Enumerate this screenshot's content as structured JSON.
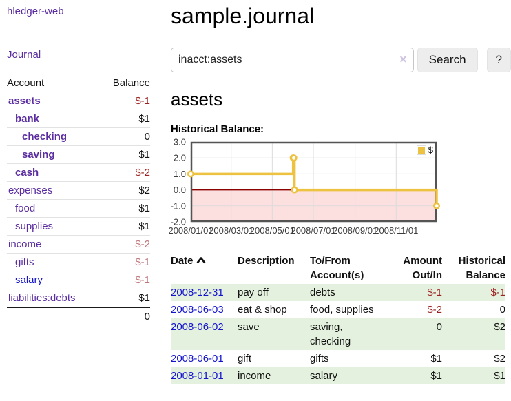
{
  "app": {
    "title": "hledger-web"
  },
  "nav": {
    "journal_label": "Journal"
  },
  "sidebar": {
    "header": {
      "account": "Account",
      "balance": "Balance"
    },
    "accounts": [
      {
        "name": "assets",
        "balance": "$-1",
        "depth": 1,
        "bold": true,
        "balance_color": "negative-strong"
      },
      {
        "name": "bank",
        "balance": "$1",
        "depth": 2,
        "bold": true,
        "balance_color": "normal"
      },
      {
        "name": "checking",
        "balance": "0",
        "depth": 3,
        "bold": true,
        "balance_color": "normal"
      },
      {
        "name": "saving",
        "balance": "$1",
        "depth": 3,
        "bold": true,
        "balance_color": "normal"
      },
      {
        "name": "cash",
        "balance": "$-2",
        "depth": 2,
        "bold": true,
        "balance_color": "negative-strong"
      },
      {
        "name": "expenses",
        "balance": "$2",
        "depth": 1,
        "bold": false,
        "balance_color": "normal"
      },
      {
        "name": "food",
        "balance": "$1",
        "depth": 2,
        "bold": false,
        "balance_color": "normal"
      },
      {
        "name": "supplies",
        "balance": "$1",
        "depth": 2,
        "bold": false,
        "balance_color": "normal"
      },
      {
        "name": "income",
        "balance": "$-2",
        "depth": 1,
        "bold": false,
        "balance_color": "negative-soft"
      },
      {
        "name": "gifts",
        "balance": "$-1",
        "depth": 2,
        "bold": false,
        "balance_color": "negative-soft"
      },
      {
        "name": "salary",
        "balance": "$-1",
        "depth": 2,
        "bold": false,
        "balance_color": "negative-soft",
        "link_color": "blue"
      },
      {
        "name": "liabilities:debts",
        "balance": "$1",
        "depth": 1,
        "bold": false,
        "balance_color": "normal"
      }
    ],
    "total": "0"
  },
  "header": {
    "title": "sample.journal"
  },
  "search": {
    "value": "inacct:assets",
    "clear_icon": "×",
    "button_label": "Search",
    "help_label": "?"
  },
  "main": {
    "account_title": "assets",
    "chart_title": "Historical Balance:"
  },
  "chart_data": {
    "type": "line",
    "title": "Historical Balance",
    "step": true,
    "series": [
      {
        "name": "$",
        "color": "#edc240",
        "points": [
          [
            "2008-01-01",
            1
          ],
          [
            "2008-06-01",
            2
          ],
          [
            "2008-06-02",
            2
          ],
          [
            "2008-06-03",
            0
          ],
          [
            "2008-12-31",
            -1
          ]
        ]
      }
    ],
    "ylim": [
      -2,
      3
    ],
    "yticks": [
      "3.0",
      "2.0",
      "1.0",
      "0.0",
      "-1.0",
      "-2.0"
    ],
    "xticks": [
      "2008/01/01",
      "2008/03/01",
      "2008/05/01",
      "2008/07/01",
      "2008/09/01",
      "2008/11/01"
    ],
    "x_range": [
      "2008-01-01",
      "2008-12-31"
    ],
    "legend": {
      "label": "$",
      "position": "top-right"
    },
    "grid": true,
    "negative_region_color": "#fcdfdf",
    "zero_line_color": "#8b0000"
  },
  "transactions": {
    "columns": [
      "Date",
      "Description",
      "To/From Account(s)",
      "Amount Out/In",
      "Historical Balance"
    ],
    "sort": {
      "column": "Date",
      "direction": "asc"
    },
    "rows": [
      {
        "date": "2008-12-31",
        "description": "pay off",
        "accounts": "debts",
        "amount": "$-1",
        "amount_negative": true,
        "balance": "$-1",
        "balance_negative": true
      },
      {
        "date": "2008-06-03",
        "description": "eat & shop",
        "accounts": "food, supplies",
        "amount": "$-2",
        "amount_negative": true,
        "balance": "0",
        "balance_negative": false
      },
      {
        "date": "2008-06-02",
        "description": "save",
        "accounts": "saving, checking",
        "amount": "0",
        "amount_negative": false,
        "balance": "$2",
        "balance_negative": false
      },
      {
        "date": "2008-06-01",
        "description": "gift",
        "accounts": "gifts",
        "amount": "$1",
        "amount_negative": false,
        "balance": "$2",
        "balance_negative": false
      },
      {
        "date": "2008-01-01",
        "description": "income",
        "accounts": "salary",
        "amount": "$1",
        "amount_negative": false,
        "balance": "$1",
        "balance_negative": false
      }
    ]
  },
  "colors": {
    "link_purple": "#5b2da0",
    "link_blue": "#1414cf",
    "negative_strong": "#9d2121",
    "negative_soft": "#c0777c",
    "row_stripe_green": "#e4f1de",
    "chart_line_gold": "#edc240",
    "chart_negative_fill": "#fcdfdf",
    "chart_zero_line": "#8b0000",
    "chart_border": "#545454"
  }
}
